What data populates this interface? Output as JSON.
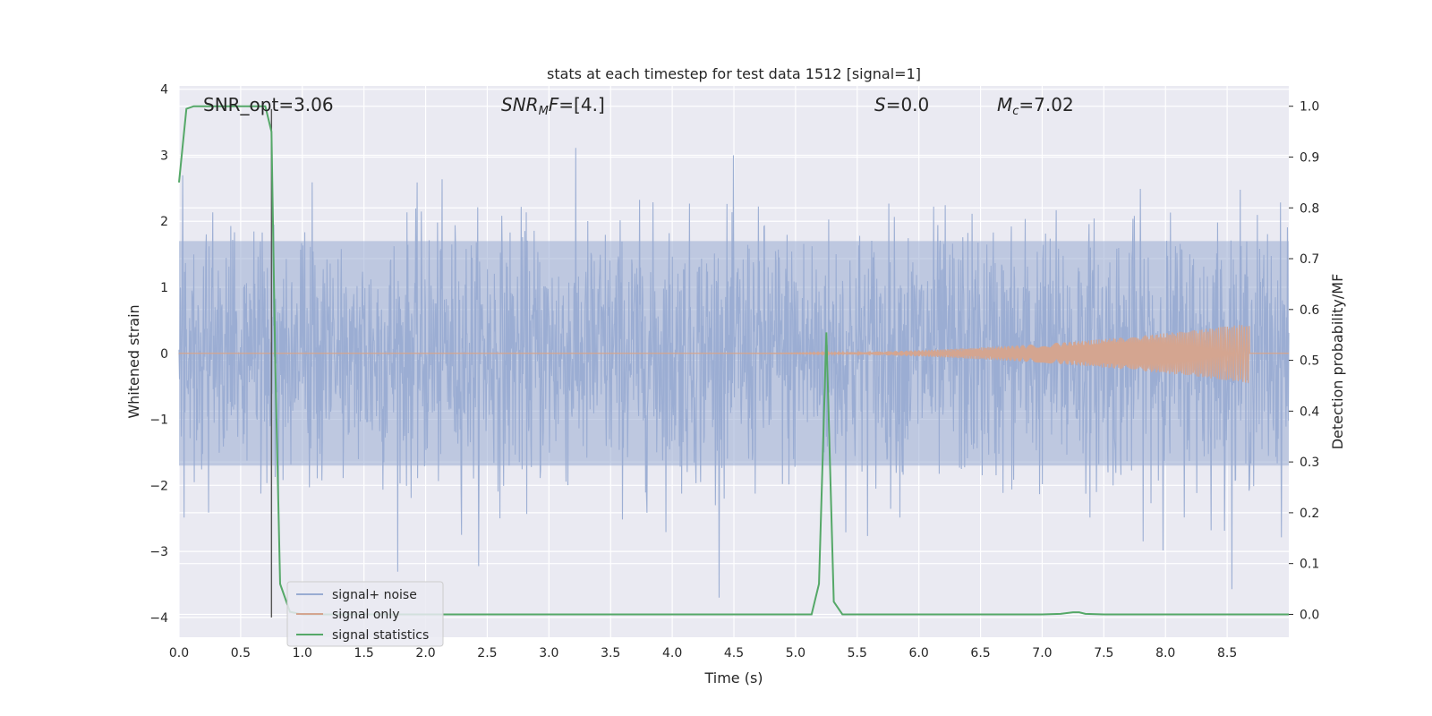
{
  "chart_data": {
    "type": "line",
    "title": "stats at each timestep for test data 1512 [signal=1]",
    "xlabel": "Time (s)",
    "ylabel_left": "Whitened strain",
    "ylabel_right": "Detection probability/MF",
    "xlim": [
      0.0,
      9.0
    ],
    "ylim_left": [
      -4.3,
      4.05
    ],
    "ylim_right": [
      -0.045,
      1.04
    ],
    "x_ticks": [
      "0.0",
      "0.5",
      "1.0",
      "1.5",
      "2.0",
      "2.5",
      "3.0",
      "3.5",
      "4.0",
      "4.5",
      "5.0",
      "5.5",
      "6.0",
      "6.5",
      "7.0",
      "7.5",
      "8.0",
      "8.5"
    ],
    "y_left_ticks": [
      "4",
      "3",
      "2",
      "1",
      "0",
      "−1",
      "−2",
      "−3",
      "−4"
    ],
    "y_right_ticks": [
      "1.0",
      "0.9",
      "0.8",
      "0.7",
      "0.6",
      "0.5",
      "0.4",
      "0.3",
      "0.2",
      "0.1",
      "0.0"
    ],
    "grid": true,
    "legend_position": "lower-left",
    "annotations": {
      "snr_opt": "SNR_opt=3.06",
      "snr_mf_base": "SNR",
      "snr_mf_sub": "M",
      "snr_mf_rest": "F=[4.]",
      "s_italic": "S",
      "s_rest": "=0.0",
      "mc_base": "M",
      "mc_sub": "c",
      "mc_rest": "=7.02"
    },
    "vertical_marker": {
      "x": 0.75,
      "y_from": -4.0,
      "y_to": 3.7
    },
    "series": [
      {
        "name": "signal+ noise",
        "color": "#99acd2",
        "axis": "left",
        "description_values": "white noise, amplitude approx ±1.7 typical, peaks to ±3.7",
        "band": 1.7,
        "peak": 3.7
      },
      {
        "name": "signal only",
        "color": "#d4a590",
        "axis": "left",
        "chirp_start": 4.5,
        "chirp_end": 8.68,
        "max_amplitude": 0.45
      },
      {
        "name": "signal statistics",
        "color": "#55a868",
        "axis": "right",
        "x": [
          0.0,
          0.06,
          0.12,
          0.2,
          0.3,
          0.4,
          0.5,
          0.6,
          0.7,
          0.75,
          0.78,
          0.82,
          0.9,
          1.0,
          2.0,
          3.0,
          4.0,
          5.0,
          5.13,
          5.19,
          5.25,
          5.31,
          5.38,
          5.5,
          6.0,
          7.0,
          7.15,
          7.25,
          7.3,
          7.35,
          7.5,
          8.0,
          8.5,
          9.0
        ],
        "values": [
          0.85,
          0.995,
          1.0,
          1.0,
          1.0,
          1.0,
          1.0,
          1.0,
          1.0,
          0.95,
          0.5,
          0.06,
          0.005,
          0.0,
          0.0,
          0.0,
          0.0,
          0.0,
          0.0,
          0.06,
          0.555,
          0.025,
          0.0,
          0.0,
          0.0,
          0.0,
          0.001,
          0.004,
          0.004,
          0.001,
          0.0,
          0.0,
          0.0,
          0.0
        ]
      }
    ],
    "legend": [
      "signal+ noise",
      "signal only",
      "signal statistics"
    ]
  }
}
